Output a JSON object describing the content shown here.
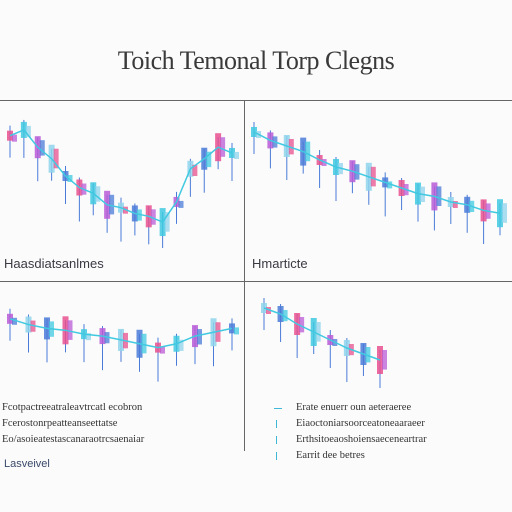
{
  "title": "Toich Temonal Torp Clegns",
  "panel_labels": [
    "Haasdiatsanlmes",
    "Hmarticte"
  ],
  "descriptions": {
    "left": [
      "Fcotpactreeatraleavtrcatl  ecobron",
      "Fcerostonrpeatteanseettatse",
      "Eo/asoieatestascanaraotrcsaenaiar"
    ],
    "right": [
      "Erate  enuerr  oun aeteraeree",
      "Eiaoctoniarsoorceatoneaaraeer",
      "Erthsitoeaoshoiensaeceneartrar",
      "Earrit  dee  betres"
    ]
  },
  "footer": "Lasveivel",
  "colors": {
    "pink": "#e8508f",
    "magenta": "#b95cd6",
    "cyan": "#40c9e0",
    "blue": "#4a7bd8",
    "lightblue": "#8fd3ec",
    "grid": "#666666"
  },
  "chart_data": [
    {
      "type": "line",
      "series": [
        {
          "values": [
            78,
            82,
            70,
            62,
            50,
            42,
            38,
            30,
            28,
            24,
            22,
            18,
            32,
            55,
            62,
            70,
            66
          ]
        }
      ]
    },
    {
      "type": "line",
      "series": [
        {
          "values": [
            80,
            74,
            70,
            66,
            60,
            55,
            52,
            48,
            44,
            40,
            36,
            34,
            30,
            28,
            24,
            22
          ]
        }
      ]
    },
    {
      "type": "line",
      "series": [
        {
          "values": [
            70,
            64,
            60,
            58,
            54,
            52,
            48,
            44,
            40,
            44,
            52,
            56,
            60
          ]
        }
      ]
    },
    {
      "type": "line",
      "series": [
        {
          "values": [
            82,
            76,
            66,
            58,
            50,
            42,
            36,
            30
          ]
        }
      ]
    }
  ]
}
